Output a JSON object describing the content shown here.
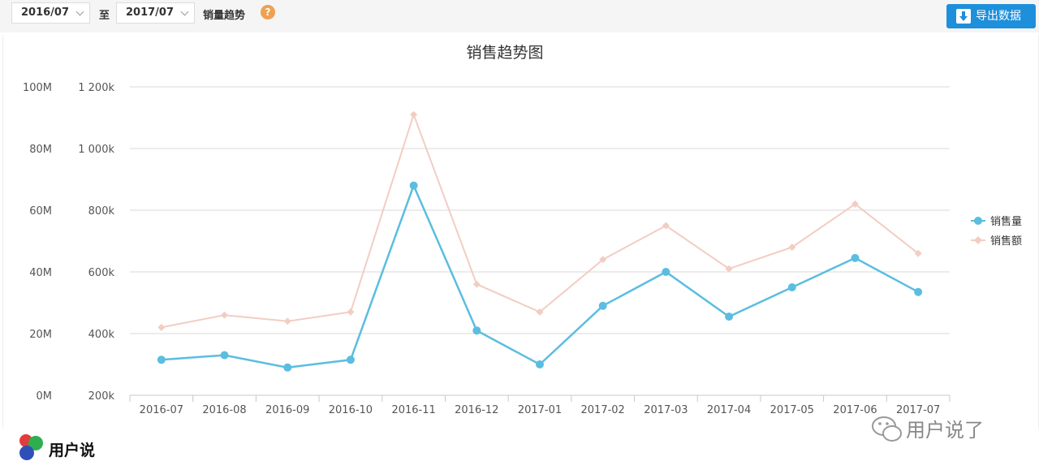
{
  "toolbar": {
    "start_month": "2016/07",
    "to_label": "至",
    "end_month": "2017/07",
    "metric_label": "销量趋势",
    "help_glyph": "?",
    "export_label": "导出数据"
  },
  "footer": {
    "brand": "用户说",
    "watermark": "用户说了"
  },
  "colors": {
    "volume": "#5bbde0",
    "amount": "#f2cdc3",
    "export_button": "#1e8fdb"
  },
  "chart_data": {
    "type": "line",
    "title": "销售趋势图",
    "categories": [
      "2016-07",
      "2016-08",
      "2016-09",
      "2016-10",
      "2016-11",
      "2016-12",
      "2017-01",
      "2017-02",
      "2017-03",
      "2017-04",
      "2017-05",
      "2017-06",
      "2017-07"
    ],
    "y_left": {
      "ticks": [
        "0M",
        "20M",
        "40M",
        "60M",
        "80M",
        "100M"
      ],
      "range": [
        0,
        100000000
      ]
    },
    "y_right": {
      "ticks": [
        "200k",
        "400k",
        "600k",
        "800k",
        "1 000k",
        "1 200k"
      ],
      "range": [
        200000,
        1200000
      ]
    },
    "series": [
      {
        "name": "销售量",
        "axis": "right",
        "color": "#5bbde0",
        "values": [
          315000,
          330000,
          290000,
          315000,
          880000,
          410000,
          300000,
          490000,
          600000,
          455000,
          550000,
          645000,
          535000
        ]
      },
      {
        "name": "销售额",
        "axis": "left",
        "color": "#f2cdc3",
        "values": [
          22000000,
          26000000,
          24000000,
          27000000,
          91000000,
          36000000,
          27000000,
          44000000,
          55000000,
          41000000,
          48000000,
          62000000,
          46000000
        ]
      }
    ],
    "grid": true,
    "legend_position": "right"
  }
}
